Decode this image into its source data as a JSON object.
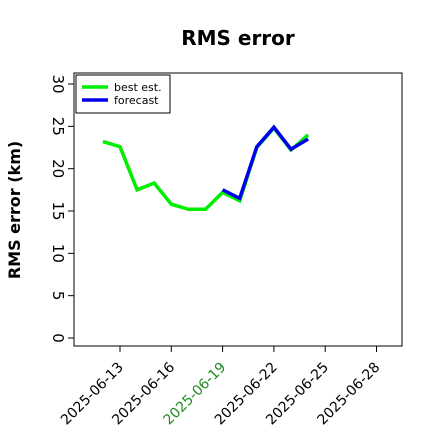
{
  "chart_data": {
    "type": "line",
    "title": "RMS error",
    "ylabel": "RMS error (km)",
    "xlabel": "",
    "ylim": [
      0,
      30
    ],
    "xlim": [
      "2025-06-10",
      "2025-06-30"
    ],
    "y_ticks": [
      "0",
      "5",
      "10",
      "15",
      "20",
      "25",
      "30"
    ],
    "x_ticks": [
      {
        "date": "2025-06-13",
        "label": "2025-06-13",
        "color": "#000000"
      },
      {
        "date": "2025-06-16",
        "label": "2025-06-16",
        "color": "#000000"
      },
      {
        "date": "2025-06-19",
        "label": "2025-06-19",
        "color": "#228B22"
      },
      {
        "date": "2025-06-22",
        "label": "2025-06-22",
        "color": "#000000"
      },
      {
        "date": "2025-06-25",
        "label": "2025-06-25",
        "color": "#000000"
      },
      {
        "date": "2025-06-28",
        "label": "2025-06-28",
        "color": "#000000"
      }
    ],
    "legend_position": "top-left",
    "grid": false,
    "series": [
      {
        "name": "best est.",
        "color": "#00ee00",
        "x": [
          "2025-06-12",
          "2025-06-13",
          "2025-06-14",
          "2025-06-15",
          "2025-06-16",
          "2025-06-17",
          "2025-06-18",
          "2025-06-19",
          "2025-06-20",
          "2025-06-21",
          "2025-06-22",
          "2025-06-23",
          "2025-06-24"
        ],
        "y": [
          23.2,
          22.6,
          17.5,
          18.3,
          15.8,
          15.2,
          15.2,
          17.2,
          16.2,
          22.5,
          24.8,
          22.2,
          24.0
        ]
      },
      {
        "name": "forecast",
        "color": "#0000ee",
        "x": [
          "2025-06-19",
          "2025-06-20",
          "2025-06-21",
          "2025-06-22",
          "2025-06-23",
          "2025-06-24"
        ],
        "y": [
          17.5,
          16.5,
          22.6,
          24.9,
          22.3,
          23.5
        ]
      }
    ]
  }
}
